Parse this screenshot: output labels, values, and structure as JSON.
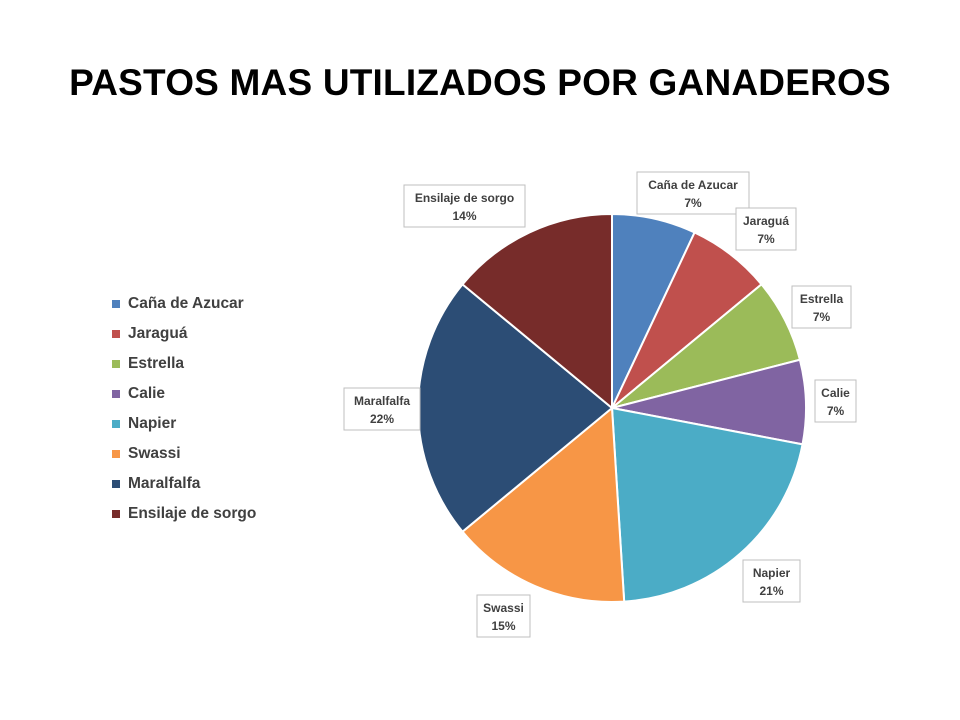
{
  "page": {
    "title": "PASTOS MAS UTILIZADOS POR GANADEROS"
  },
  "chart_data": {
    "type": "pie",
    "title": "PASTOS MAS UTILIZADOS POR GANADEROS",
    "legend_position": "left",
    "categories": [
      "Caña de Azucar",
      "Jaraguá",
      "Estrella",
      "Calie",
      "Napier",
      "Swassi",
      "Maralfalfa",
      "Ensilaje de sorgo"
    ],
    "values": [
      7,
      7,
      7,
      7,
      21,
      15,
      22,
      14
    ],
    "labels": [
      "7%",
      "7%",
      "7%",
      "7%",
      "21%",
      "15%",
      "22%",
      "14%"
    ],
    "colors": [
      "#4F81BD",
      "#C0504D",
      "#9BBB59",
      "#8064A2",
      "#4BACC6",
      "#F79646",
      "#2C4D75",
      "#772C2A"
    ]
  }
}
